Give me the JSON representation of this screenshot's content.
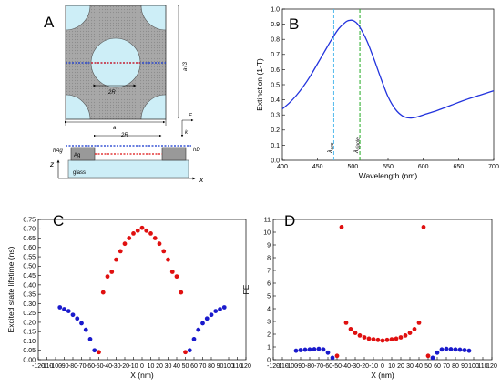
{
  "panels": {
    "a": {
      "letter": "A",
      "labels": {
        "two_r_top": "2R",
        "a": "a",
        "a_sqrt3": "a√3",
        "e": "E",
        "k": "k",
        "two_r_side": "2R",
        "h_ag": "hAg",
        "ag": "Ag",
        "h_d": "hD",
        "z": "z",
        "x": "x",
        "glass": "glass"
      }
    },
    "b": {
      "letter": "B"
    },
    "c": {
      "letter": "C"
    },
    "d": {
      "letter": "D"
    }
  },
  "chart_data": [
    {
      "panel": "B",
      "type": "line",
      "xlabel": "Wavelength (nm)",
      "ylabel": "Extinction (1-T)",
      "xlim": [
        400,
        700
      ],
      "ylim": [
        0.0,
        1.0
      ],
      "xticks": [
        400,
        450,
        500,
        550,
        600,
        650,
        700
      ],
      "yticks": [
        0.0,
        0.1,
        0.2,
        0.3,
        0.4,
        0.5,
        0.6,
        0.7,
        0.8,
        0.9,
        1.0
      ],
      "grid": false,
      "line_color": "#2233dd",
      "series": [
        {
          "x": [
            400,
            410,
            420,
            430,
            440,
            450,
            460,
            470,
            480,
            490,
            495,
            500,
            505,
            510,
            520,
            530,
            540,
            550,
            560,
            570,
            580,
            590,
            600,
            620,
            640,
            660,
            680,
            700
          ],
          "values": [
            0.34,
            0.38,
            0.43,
            0.49,
            0.56,
            0.64,
            0.72,
            0.8,
            0.87,
            0.915,
            0.925,
            0.925,
            0.91,
            0.88,
            0.79,
            0.67,
            0.54,
            0.42,
            0.34,
            0.295,
            0.28,
            0.285,
            0.3,
            0.33,
            0.365,
            0.4,
            0.43,
            0.46
          ]
        }
      ],
      "vlines": [
        {
          "x": 473,
          "label_main": "λ",
          "label_sub": "exc",
          "color": "#55bbee"
        },
        {
          "x": 510,
          "label_main": "λ",
          "label_sub": "dipole",
          "color": "#22aa22"
        }
      ]
    },
    {
      "panel": "C",
      "type": "scatter",
      "xlabel": "X (nm)",
      "ylabel": "Excited state lifetime (ns)",
      "xlim": [
        -120,
        120
      ],
      "ylim": [
        0.0,
        0.75
      ],
      "xticks": [
        -120,
        -110,
        -100,
        -90,
        -80,
        -70,
        -60,
        -50,
        -40,
        -30,
        -20,
        -10,
        0,
        10,
        20,
        30,
        40,
        50,
        60,
        70,
        80,
        90,
        100,
        110,
        120
      ],
      "yticks": [
        0.0,
        0.05,
        0.1,
        0.15,
        0.2,
        0.25,
        0.3,
        0.35,
        0.4,
        0.45,
        0.5,
        0.55,
        0.6,
        0.65,
        0.7,
        0.75
      ],
      "tick_decimals": 2,
      "grid": false,
      "series": [
        {
          "color": "#1a1acc",
          "x": [
            -95,
            -90,
            -85,
            -80,
            -75,
            -70,
            -65,
            -60,
            -55,
            55,
            60,
            65,
            70,
            75,
            80,
            85,
            90,
            95
          ],
          "values": [
            0.28,
            0.27,
            0.26,
            0.24,
            0.22,
            0.195,
            0.16,
            0.11,
            0.05,
            0.05,
            0.11,
            0.16,
            0.195,
            0.22,
            0.24,
            0.26,
            0.27,
            0.28
          ]
        },
        {
          "color": "#e01010",
          "x": [
            -50,
            -45,
            -40,
            -35,
            -30,
            -25,
            -20,
            -15,
            -10,
            -5,
            0,
            5,
            10,
            15,
            20,
            25,
            30,
            35,
            40,
            45,
            50
          ],
          "values": [
            0.04,
            0.36,
            0.445,
            0.47,
            0.535,
            0.58,
            0.62,
            0.65,
            0.675,
            0.69,
            0.705,
            0.69,
            0.675,
            0.65,
            0.62,
            0.58,
            0.535,
            0.47,
            0.445,
            0.36,
            0.04
          ]
        }
      ]
    },
    {
      "panel": "D",
      "type": "scatter",
      "xlabel": "X (nm)",
      "ylabel": "FE",
      "xlim": [
        -120,
        120
      ],
      "ylim": [
        0,
        11
      ],
      "xticks": [
        -120,
        -110,
        -100,
        -90,
        -80,
        -70,
        -60,
        -50,
        -40,
        -30,
        -20,
        -10,
        0,
        10,
        20,
        30,
        40,
        50,
        60,
        70,
        80,
        90,
        100,
        110,
        120
      ],
      "yticks": [
        0,
        1,
        2,
        3,
        4,
        5,
        6,
        7,
        8,
        9,
        10,
        11
      ],
      "tick_decimals": 0,
      "grid": false,
      "series": [
        {
          "color": "#1a1acc",
          "x": [
            -95,
            -90,
            -85,
            -80,
            -75,
            -70,
            -65,
            -60,
            -55,
            55,
            60,
            65,
            70,
            75,
            80,
            85,
            90,
            95
          ],
          "values": [
            0.7,
            0.75,
            0.78,
            0.8,
            0.82,
            0.85,
            0.8,
            0.55,
            0.15,
            0.15,
            0.55,
            0.8,
            0.85,
            0.82,
            0.8,
            0.78,
            0.75,
            0.7
          ]
        },
        {
          "color": "#e01010",
          "x": [
            -50,
            -45,
            -40,
            -35,
            -30,
            -25,
            -20,
            -15,
            -10,
            -5,
            0,
            5,
            10,
            15,
            20,
            25,
            30,
            35,
            40,
            45,
            50
          ],
          "values": [
            0.3,
            10.4,
            2.9,
            2.4,
            2.1,
            1.9,
            1.75,
            1.65,
            1.6,
            1.55,
            1.5,
            1.55,
            1.6,
            1.65,
            1.75,
            1.9,
            2.1,
            2.4,
            2.9,
            10.4,
            0.3
          ]
        }
      ]
    }
  ]
}
